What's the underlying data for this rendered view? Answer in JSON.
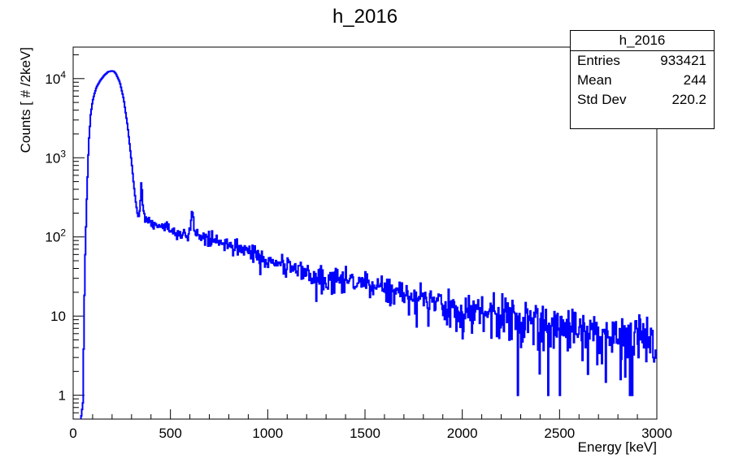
{
  "chart_data": {
    "type": "line",
    "title": "h_2016",
    "xlabel": "Energy [keV]",
    "ylabel": "Counts [ # /2keV]",
    "xlim": [
      0,
      3000
    ],
    "ylim": [
      0.5,
      25000
    ],
    "yscale": "log",
    "x_ticks": [
      "0",
      "500",
      "1000",
      "1500",
      "2000",
      "2500",
      "3000"
    ],
    "y_ticks": [
      {
        "value": 1,
        "label": "1"
      },
      {
        "value": 10,
        "label": "10"
      },
      {
        "value": 100,
        "base": "10",
        "exp": "2"
      },
      {
        "value": 1000,
        "base": "10",
        "exp": "3"
      },
      {
        "value": 10000,
        "base": "10",
        "exp": "4"
      }
    ],
    "color": "#0000ff",
    "grid": false,
    "series": [
      {
        "x": [
          40,
          50,
          60,
          70,
          80,
          90,
          100,
          110,
          120,
          140,
          160,
          180,
          200,
          210,
          220,
          240,
          260,
          280,
          300,
          310,
          320,
          330,
          340,
          345,
          350,
          355,
          360,
          370,
          380,
          400,
          420,
          440,
          460,
          480,
          500,
          520,
          540,
          560,
          580,
          595,
          605,
          612,
          620,
          630,
          650,
          680,
          700,
          750,
          800,
          850,
          900,
          950,
          1000,
          1050,
          1100,
          1150,
          1200,
          1250,
          1300,
          1350,
          1400,
          1450,
          1500,
          1550,
          1600,
          1650,
          1700,
          1750,
          1800,
          1850,
          1900,
          1950,
          2000,
          2050,
          2100,
          2150,
          2200,
          2250,
          2300,
          2350,
          2400,
          2450,
          2500,
          2550,
          2600,
          2650,
          2700,
          2750,
          2800,
          2850,
          2900,
          2950,
          3000
        ],
        "y": [
          0.5,
          0.8,
          40,
          300,
          1500,
          3500,
          5200,
          6500,
          7800,
          9500,
          11000,
          12200,
          12500,
          12300,
          11500,
          9000,
          5500,
          2500,
          900,
          500,
          300,
          200,
          170,
          250,
          480,
          350,
          220,
          180,
          170,
          160,
          155,
          150,
          140,
          130,
          125,
          120,
          115,
          110,
          108,
          110,
          150,
          230,
          140,
          110,
          105,
          100,
          95,
          85,
          80,
          72,
          65,
          58,
          52,
          47,
          42,
          38,
          34,
          31,
          30,
          29,
          32,
          27,
          25,
          23,
          21,
          19,
          18,
          17,
          16,
          15,
          14,
          13,
          12,
          11.5,
          11,
          10.5,
          10,
          9.5,
          9,
          8.5,
          8,
          7.5,
          7,
          6.8,
          6.5,
          6.2,
          6,
          5.8,
          5.5,
          5.2,
          5,
          5,
          5
        ]
      }
    ]
  },
  "stats": {
    "title": "h_2016",
    "rows": [
      {
        "label": "Entries",
        "value": "933421"
      },
      {
        "label": "Mean",
        "value": "244"
      },
      {
        "label": "Std Dev",
        "value": "220.2"
      }
    ]
  }
}
